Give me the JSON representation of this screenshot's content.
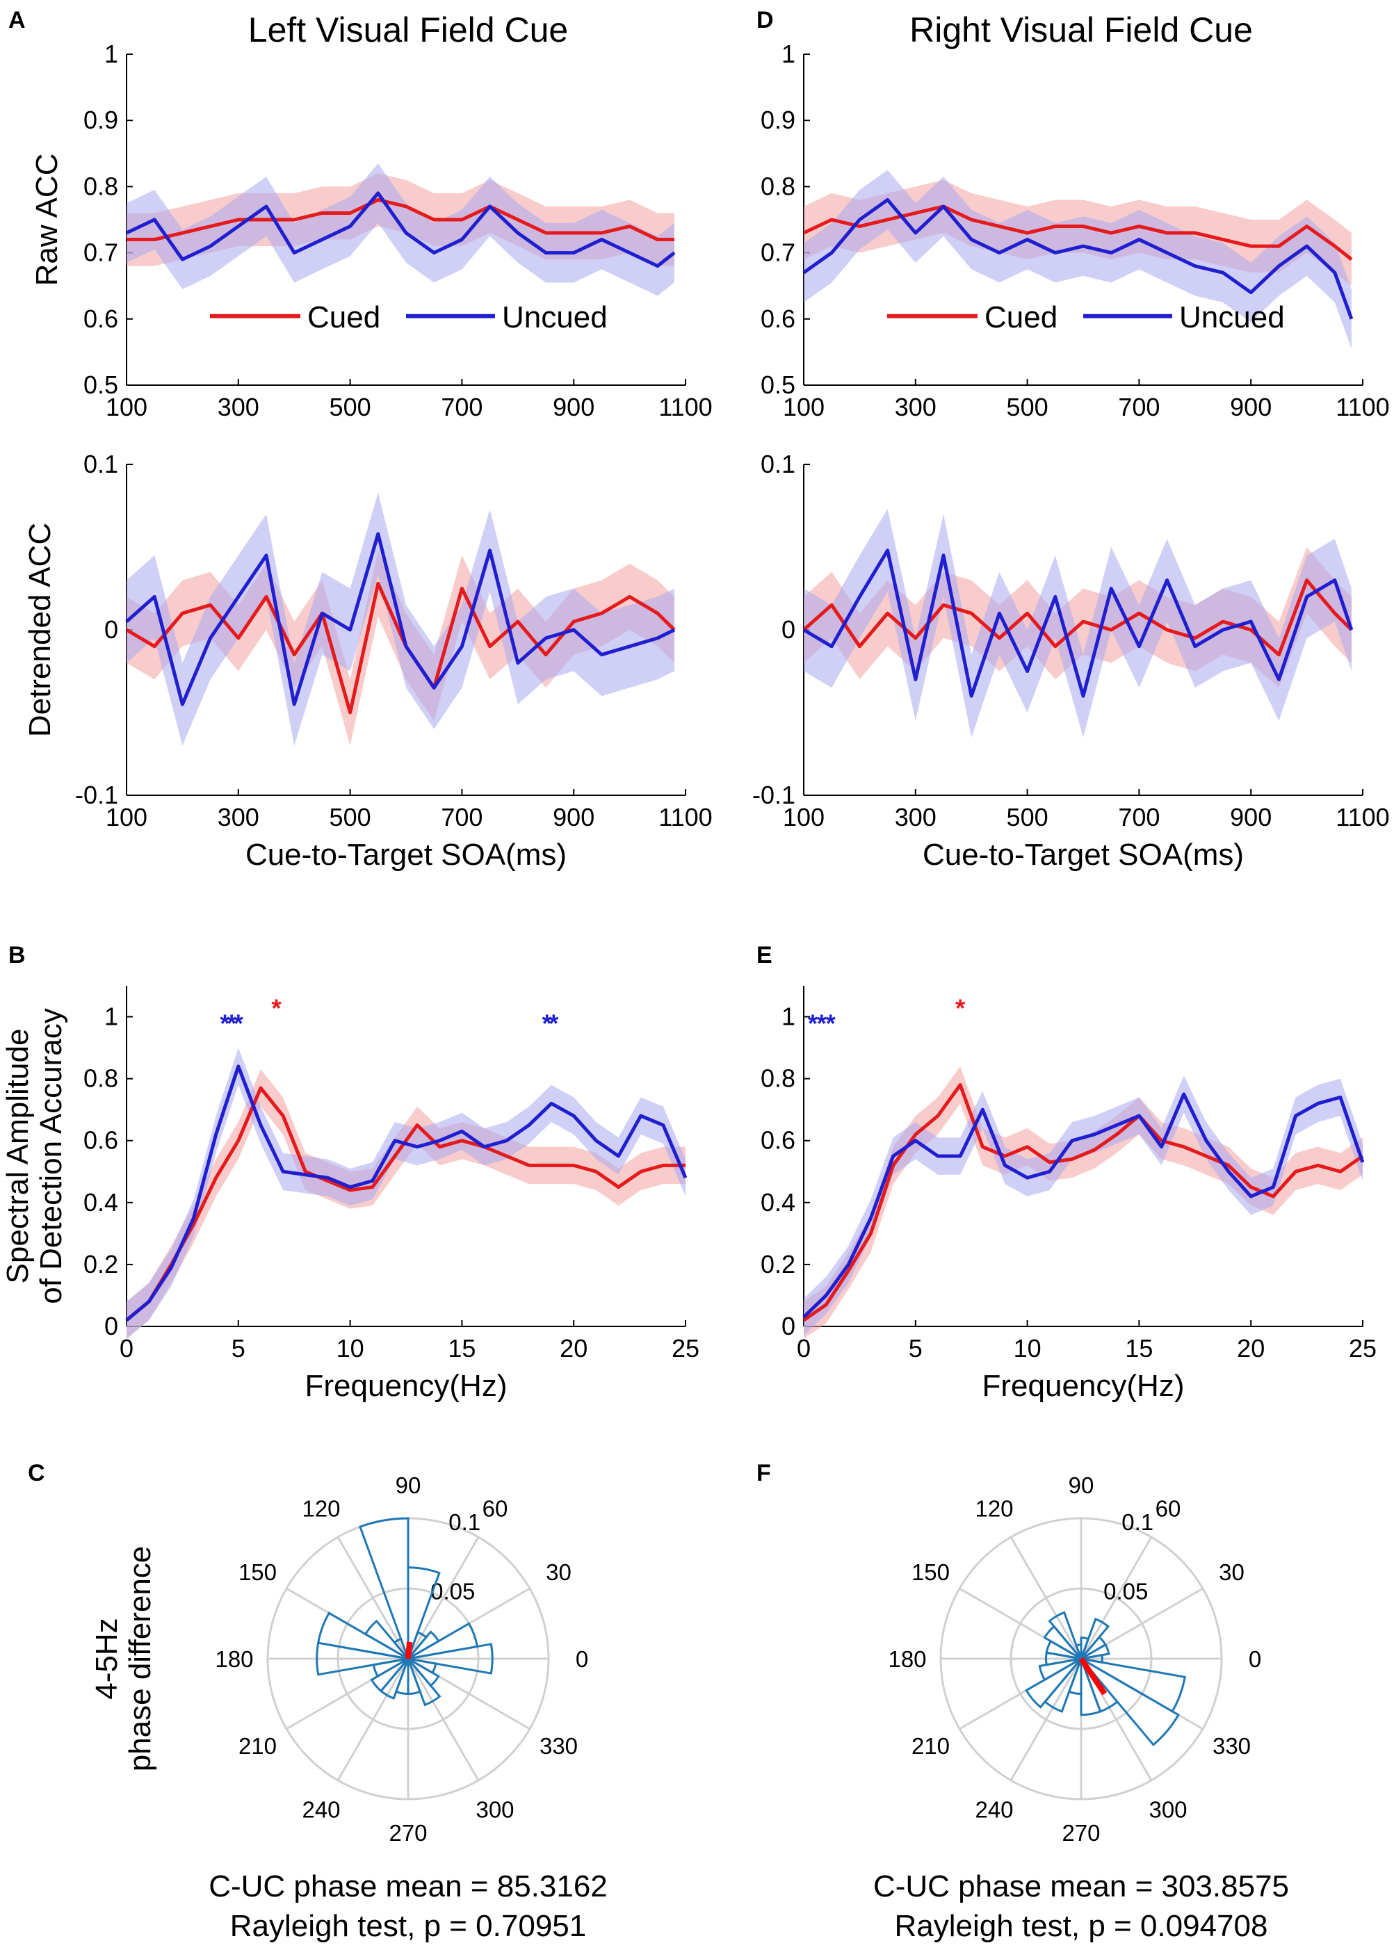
{
  "colors": {
    "cued": "#e41a1c",
    "uncued": "#1f1fcf",
    "cued_band": "#f4a3a3",
    "uncued_band": "#a9a9f1",
    "rose": "#1f77b4",
    "mean_vec": "#ff0000",
    "grid": "#d0d0d0"
  },
  "columns": [
    {
      "title": "Left Visual Field Cue"
    },
    {
      "title": "Right Visual Field Cue"
    }
  ],
  "panel_letters": [
    "A",
    "B",
    "C",
    "D",
    "E",
    "F"
  ],
  "legend": {
    "cued": "Cued",
    "uncued": "Uncued"
  },
  "stats": [
    {
      "line1": "C-UC phase mean = 85.3162",
      "line2": "Rayleigh test, p = 0.70951"
    },
    {
      "line1": "C-UC phase mean = 303.8575",
      "line2": "Rayleigh test, p = 0.094708"
    }
  ],
  "chart_data": [
    {
      "id": "A-raw",
      "type": "line",
      "column": 0,
      "ylabel": "Raw ACC",
      "xlabel": "",
      "xlim": [
        100,
        1100
      ],
      "ylim": [
        0.5,
        1
      ],
      "xticks": [
        100,
        300,
        500,
        700,
        900,
        1100
      ],
      "yticks": [
        0.5,
        0.6,
        0.7,
        0.8,
        0.9,
        1
      ],
      "ytick_labels": [
        "0.5",
        "0.6",
        "0.7",
        "0.8",
        "0.9",
        "1"
      ],
      "x": [
        100,
        150,
        200,
        250,
        300,
        350,
        400,
        450,
        500,
        550,
        600,
        650,
        700,
        750,
        800,
        850,
        900,
        950,
        1000,
        1050,
        1080
      ],
      "series": [
        {
          "name": "Cued",
          "values": [
            0.72,
            0.72,
            0.73,
            0.74,
            0.75,
            0.75,
            0.75,
            0.76,
            0.76,
            0.78,
            0.77,
            0.75,
            0.75,
            0.77,
            0.75,
            0.73,
            0.73,
            0.73,
            0.74,
            0.72,
            0.72
          ],
          "band": 0.04
        },
        {
          "name": "Uncued",
          "values": [
            0.73,
            0.75,
            0.69,
            0.71,
            0.74,
            0.77,
            0.7,
            0.72,
            0.74,
            0.79,
            0.73,
            0.7,
            0.72,
            0.77,
            0.73,
            0.7,
            0.7,
            0.72,
            0.7,
            0.68,
            0.7
          ],
          "band": 0.045
        }
      ]
    },
    {
      "id": "A-detrended",
      "type": "line",
      "column": 0,
      "ylabel": "Detrended ACC",
      "xlabel": "Cue-to-Target SOA(ms)",
      "xlim": [
        100,
        1100
      ],
      "ylim": [
        -0.1,
        0.1
      ],
      "xticks": [
        100,
        300,
        500,
        700,
        900,
        1100
      ],
      "yticks": [
        -0.1,
        0,
        0.1
      ],
      "ytick_labels": [
        "-0.1",
        "0",
        "0.1"
      ],
      "x": [
        100,
        150,
        200,
        250,
        300,
        350,
        400,
        450,
        500,
        550,
        600,
        650,
        700,
        750,
        800,
        850,
        900,
        950,
        1000,
        1050,
        1080
      ],
      "series": [
        {
          "name": "Cued",
          "values": [
            0,
            -0.01,
            0.01,
            0.015,
            -0.005,
            0.02,
            -0.015,
            0.01,
            -0.05,
            0.028,
            -0.01,
            -0.035,
            0.025,
            -0.01,
            0.005,
            -0.015,
            0.005,
            0.01,
            0.02,
            0.01,
            0
          ],
          "band": 0.02
        },
        {
          "name": "Uncued",
          "values": [
            0.005,
            0.02,
            -0.045,
            -0.005,
            0.02,
            0.045,
            -0.045,
            0.01,
            0,
            0.058,
            -0.01,
            -0.035,
            -0.01,
            0.048,
            -0.02,
            -0.005,
            0,
            -0.015,
            -0.01,
            -0.005,
            0
          ],
          "band": 0.025
        }
      ]
    },
    {
      "id": "B-spectrum",
      "type": "line",
      "column": 0,
      "ylabel": "Spectral Amplitude",
      "ylabel2": "of Detection Accuracy",
      "xlabel": "Frequency(Hz)",
      "xlim": [
        0,
        25
      ],
      "ylim": [
        0,
        1.1
      ],
      "xticks": [
        0,
        5,
        10,
        15,
        20,
        25
      ],
      "yticks": [
        0,
        0.2,
        0.4,
        0.6,
        0.8,
        1
      ],
      "ytick_labels": [
        "0",
        "0.2",
        "0.4",
        "0.6",
        "0.8",
        "1"
      ],
      "x": [
        0,
        1,
        2,
        3,
        4,
        5,
        6,
        7,
        8,
        9,
        10,
        11,
        12,
        13,
        14,
        15,
        16,
        17,
        18,
        19,
        20,
        21,
        22,
        23,
        24,
        25
      ],
      "series": [
        {
          "name": "Cued",
          "values": [
            0.02,
            0.08,
            0.2,
            0.33,
            0.48,
            0.6,
            0.77,
            0.68,
            0.5,
            0.47,
            0.44,
            0.45,
            0.55,
            0.65,
            0.58,
            0.6,
            0.58,
            0.55,
            0.52,
            0.52,
            0.52,
            0.5,
            0.45,
            0.5,
            0.52,
            0.52
          ],
          "band": 0.06
        },
        {
          "name": "Uncued",
          "values": [
            0.02,
            0.08,
            0.19,
            0.35,
            0.62,
            0.84,
            0.65,
            0.5,
            0.49,
            0.48,
            0.45,
            0.47,
            0.6,
            0.58,
            0.6,
            0.63,
            0.58,
            0.6,
            0.65,
            0.72,
            0.68,
            0.6,
            0.55,
            0.68,
            0.65,
            0.48
          ],
          "band": 0.06
        }
      ],
      "significance_markers": [
        {
          "series": "Uncued",
          "x": [
            4.4,
            4.7,
            5.0,
            18.8,
            19.1
          ],
          "y": 1.0,
          "label": "*"
        },
        {
          "series": "Cued",
          "x": [
            6.7
          ],
          "y": 1.05,
          "label": "*"
        }
      ]
    },
    {
      "id": "C-rose",
      "type": "polar-histogram",
      "column": 0,
      "ylabel": "4-5Hz",
      "ylabel2": "phase difference",
      "rlim": [
        0,
        0.1
      ],
      "rtick_labels": [
        "0.05",
        "0.1"
      ],
      "angle_labels": [
        "0",
        "30",
        "60",
        "90",
        "120",
        "150",
        "180",
        "210",
        "240",
        "270",
        "300",
        "330"
      ],
      "bin_width_deg": 20,
      "bins": [
        {
          "center": 0,
          "value": 0.06
        },
        {
          "center": 20,
          "value": 0.05
        },
        {
          "center": 40,
          "value": 0.025
        },
        {
          "center": 60,
          "value": 0.02
        },
        {
          "center": 80,
          "value": 0.065
        },
        {
          "center": 100,
          "value": 0.1
        },
        {
          "center": 120,
          "value": 0.015
        },
        {
          "center": 140,
          "value": 0.035
        },
        {
          "center": 160,
          "value": 0.065
        },
        {
          "center": 180,
          "value": 0.065
        },
        {
          "center": 200,
          "value": 0.025
        },
        {
          "center": 220,
          "value": 0.03
        },
        {
          "center": 240,
          "value": 0.03
        },
        {
          "center": 260,
          "value": 0.025
        },
        {
          "center": 280,
          "value": 0.025
        },
        {
          "center": 300,
          "value": 0.035
        },
        {
          "center": 320,
          "value": 0.025
        },
        {
          "center": 340,
          "value": 0.02
        }
      ],
      "mean_angle_deg": 85.3162,
      "mean_length": 0.012
    },
    {
      "id": "D-raw",
      "type": "line",
      "column": 1,
      "ylabel": "",
      "xlabel": "",
      "xlim": [
        100,
        1100
      ],
      "ylim": [
        0.5,
        1
      ],
      "xticks": [
        100,
        300,
        500,
        700,
        900,
        1100
      ],
      "yticks": [
        0.5,
        0.6,
        0.7,
        0.8,
        0.9,
        1
      ],
      "ytick_labels": [
        "0.5",
        "0.6",
        "0.7",
        "0.8",
        "0.9",
        "1"
      ],
      "x": [
        100,
        150,
        200,
        250,
        300,
        350,
        400,
        450,
        500,
        550,
        600,
        650,
        700,
        750,
        800,
        850,
        900,
        950,
        1000,
        1050,
        1080
      ],
      "series": [
        {
          "name": "Cued",
          "values": [
            0.73,
            0.75,
            0.74,
            0.75,
            0.76,
            0.77,
            0.75,
            0.74,
            0.73,
            0.74,
            0.74,
            0.73,
            0.74,
            0.73,
            0.73,
            0.72,
            0.71,
            0.71,
            0.74,
            0.71,
            0.69
          ],
          "band": 0.04
        },
        {
          "name": "Uncued",
          "values": [
            0.67,
            0.7,
            0.75,
            0.78,
            0.73,
            0.77,
            0.72,
            0.7,
            0.72,
            0.7,
            0.71,
            0.7,
            0.72,
            0.7,
            0.68,
            0.67,
            0.64,
            0.68,
            0.71,
            0.67,
            0.6
          ],
          "band": 0.045
        }
      ]
    },
    {
      "id": "D-detrended",
      "type": "line",
      "column": 1,
      "ylabel": "",
      "xlabel": "Cue-to-Target SOA(ms)",
      "xlim": [
        100,
        1100
      ],
      "ylim": [
        -0.1,
        0.1
      ],
      "xticks": [
        100,
        300,
        500,
        700,
        900,
        1100
      ],
      "yticks": [
        -0.1,
        0,
        0.1
      ],
      "ytick_labels": [
        "-0.1",
        "0",
        "0.1"
      ],
      "x": [
        100,
        150,
        200,
        250,
        300,
        350,
        400,
        450,
        500,
        550,
        600,
        650,
        700,
        750,
        800,
        850,
        900,
        950,
        1000,
        1050,
        1080
      ],
      "series": [
        {
          "name": "Cued",
          "values": [
            0,
            0.015,
            -0.01,
            0.01,
            -0.005,
            0.015,
            0.01,
            -0.005,
            0.01,
            -0.01,
            0.005,
            0,
            0.01,
            0,
            -0.005,
            0.005,
            0,
            -0.015,
            0.03,
            0.01,
            0
          ],
          "band": 0.02
        },
        {
          "name": "Uncued",
          "values": [
            0,
            -0.01,
            0.02,
            0.048,
            -0.03,
            0.045,
            -0.04,
            0.01,
            -0.025,
            0.02,
            -0.04,
            0.025,
            -0.01,
            0.03,
            -0.01,
            0,
            0.005,
            -0.03,
            0.02,
            0.03,
            0
          ],
          "band": 0.025
        }
      ]
    },
    {
      "id": "E-spectrum",
      "type": "line",
      "column": 1,
      "ylabel": "",
      "xlabel": "Frequency(Hz)",
      "xlim": [
        0,
        25
      ],
      "ylim": [
        0,
        1.1
      ],
      "xticks": [
        0,
        5,
        10,
        15,
        20,
        25
      ],
      "yticks": [
        0,
        0.2,
        0.4,
        0.6,
        0.8,
        1
      ],
      "ytick_labels": [
        "0",
        "0.2",
        "0.4",
        "0.6",
        "0.8",
        "1"
      ],
      "x": [
        0,
        1,
        2,
        3,
        4,
        5,
        6,
        7,
        8,
        9,
        10,
        11,
        12,
        13,
        14,
        15,
        16,
        17,
        18,
        19,
        20,
        21,
        22,
        23,
        24,
        25
      ],
      "series": [
        {
          "name": "Cued",
          "values": [
            0.02,
            0.07,
            0.18,
            0.3,
            0.52,
            0.62,
            0.68,
            0.78,
            0.58,
            0.55,
            0.58,
            0.53,
            0.54,
            0.57,
            0.62,
            0.68,
            0.6,
            0.58,
            0.55,
            0.52,
            0.45,
            0.42,
            0.5,
            0.52,
            0.5,
            0.55
          ],
          "band": 0.06
        },
        {
          "name": "Uncued",
          "values": [
            0.03,
            0.1,
            0.2,
            0.35,
            0.55,
            0.6,
            0.55,
            0.55,
            0.7,
            0.52,
            0.48,
            0.5,
            0.6,
            0.62,
            0.65,
            0.68,
            0.58,
            0.75,
            0.6,
            0.5,
            0.42,
            0.45,
            0.68,
            0.72,
            0.74,
            0.53
          ],
          "band": 0.06
        }
      ],
      "significance_markers": [
        {
          "series": "Uncued",
          "x": [
            0.4,
            0.8,
            1.2
          ],
          "y": 1.0,
          "label": "*"
        },
        {
          "series": "Cued",
          "x": [
            7.0
          ],
          "y": 1.05,
          "label": "*"
        }
      ]
    },
    {
      "id": "F-rose",
      "type": "polar-histogram",
      "column": 1,
      "ylabel": "",
      "rlim": [
        0,
        0.1
      ],
      "rtick_labels": [
        "0.05",
        "0.1"
      ],
      "angle_labels": [
        "0",
        "30",
        "60",
        "90",
        "120",
        "150",
        "180",
        "210",
        "240",
        "270",
        "300",
        "330"
      ],
      "bin_width_deg": 20,
      "bins": [
        {
          "center": 0,
          "value": 0.015
        },
        {
          "center": 20,
          "value": 0.02
        },
        {
          "center": 40,
          "value": 0.02
        },
        {
          "center": 60,
          "value": 0.03
        },
        {
          "center": 80,
          "value": 0.015
        },
        {
          "center": 100,
          "value": 0.01
        },
        {
          "center": 120,
          "value": 0.035
        },
        {
          "center": 140,
          "value": 0.03
        },
        {
          "center": 160,
          "value": 0.025
        },
        {
          "center": 180,
          "value": 0.025
        },
        {
          "center": 200,
          "value": 0.03
        },
        {
          "center": 220,
          "value": 0.045
        },
        {
          "center": 240,
          "value": 0.04
        },
        {
          "center": 260,
          "value": 0.025
        },
        {
          "center": 280,
          "value": 0.04
        },
        {
          "center": 300,
          "value": 0.04
        },
        {
          "center": 320,
          "value": 0.08
        },
        {
          "center": 340,
          "value": 0.075
        }
      ],
      "mean_angle_deg": 303.8575,
      "mean_length": 0.03
    }
  ]
}
